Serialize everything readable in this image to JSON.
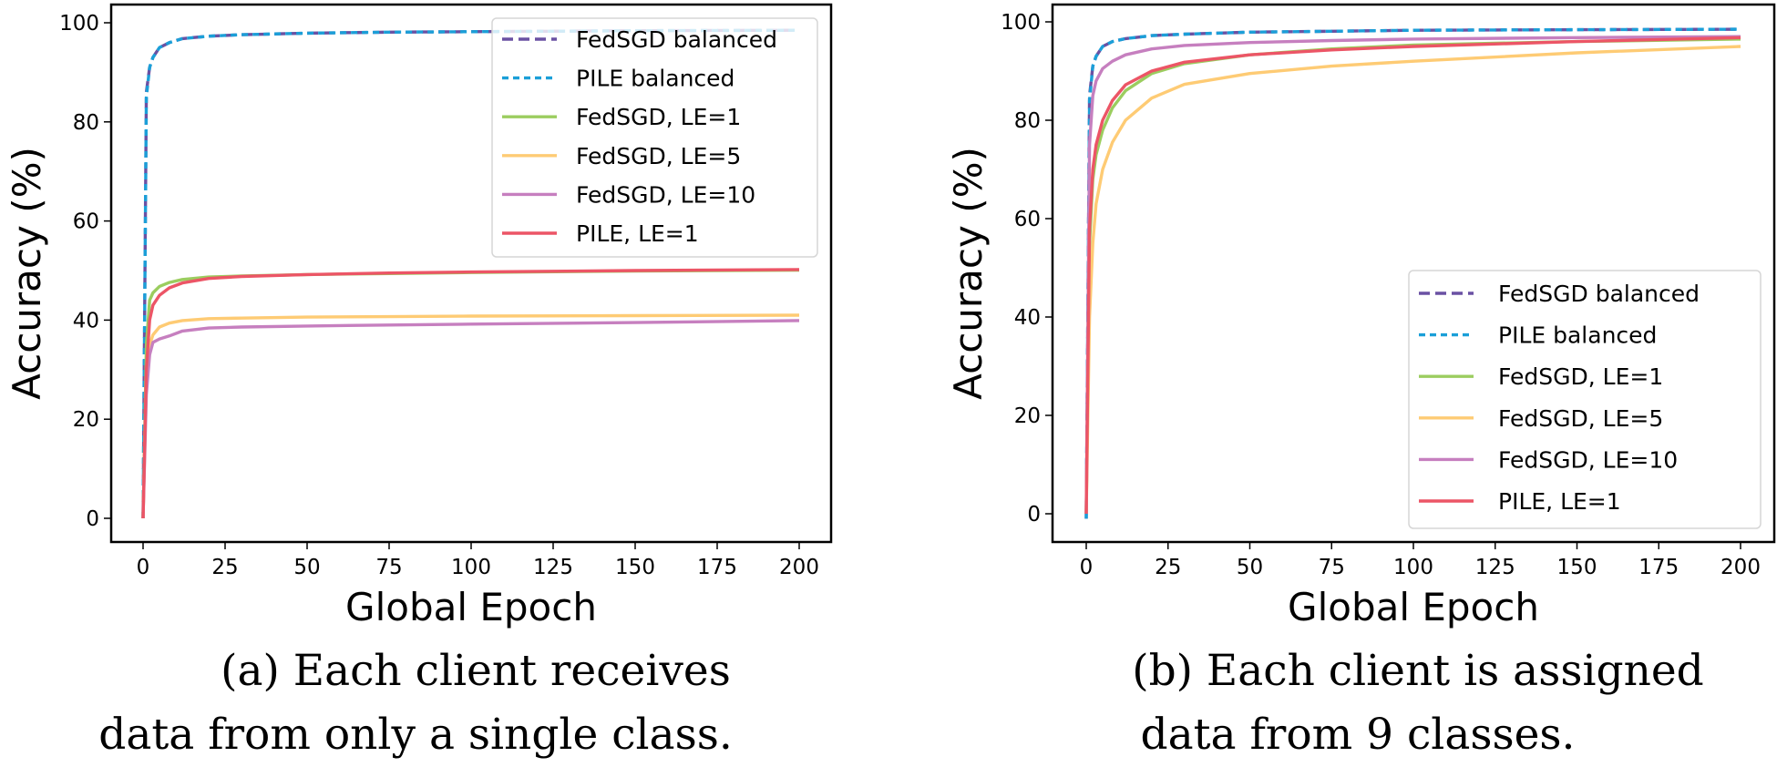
{
  "chart_data": [
    {
      "type": "line",
      "caption": [
        "(a) Each client receives",
        "data from only a single class."
      ],
      "xlabel": "Global Epoch",
      "ylabel": "Accuracy (%)",
      "xlim": [
        -10,
        210
      ],
      "ylim": [
        -8,
        103
      ],
      "xticks": [
        0,
        25,
        50,
        75,
        100,
        125,
        150,
        175,
        200
      ],
      "yticks": [
        0,
        20,
        40,
        60,
        80,
        100
      ],
      "grid": false,
      "legend_position": "top-right",
      "x": [
        0,
        1,
        2,
        3,
        5,
        8,
        12,
        20,
        30,
        50,
        75,
        100,
        150,
        200
      ],
      "series": [
        {
          "name": "FedSGD balanced",
          "color": "#6a51a3",
          "style": "dashed",
          "values": [
            0,
            86,
            91,
            93,
            95,
            96,
            96.8,
            97.3,
            97.6,
            97.9,
            98.1,
            98.2,
            98.4,
            98.5
          ]
        },
        {
          "name": "PILE balanced",
          "color": "#1b9fd8",
          "style": "dotted-dash",
          "values": [
            0,
            85,
            91,
            93,
            95,
            96,
            96.8,
            97.3,
            97.6,
            97.9,
            98.1,
            98.2,
            98.4,
            98.5
          ]
        },
        {
          "name": "FedSGD, LE=1",
          "color": "#9bcd5f",
          "style": "solid",
          "values": [
            0,
            35,
            44,
            45.5,
            46.8,
            47.6,
            48.2,
            48.7,
            48.9,
            49.2,
            49.4,
            49.6,
            49.9,
            50.1
          ]
        },
        {
          "name": "FedSGD, LE=5",
          "color": "#fecb74",
          "style": "solid",
          "values": [
            0,
            28,
            35,
            37,
            38.6,
            39.4,
            39.9,
            40.3,
            40.4,
            40.6,
            40.7,
            40.8,
            40.9,
            41
          ]
        },
        {
          "name": "FedSGD, LE=10",
          "color": "#c67fbf",
          "style": "solid",
          "values": [
            0,
            25,
            33,
            35.5,
            36.2,
            36.8,
            37.8,
            38.4,
            38.6,
            38.8,
            39,
            39.2,
            39.5,
            39.9
          ]
        },
        {
          "name": "PILE, LE=1",
          "color": "#ec5566",
          "style": "solid",
          "values": [
            0,
            30,
            40,
            43,
            45,
            46.5,
            47.5,
            48.4,
            48.8,
            49.2,
            49.5,
            49.7,
            50,
            50.2
          ]
        }
      ]
    },
    {
      "type": "line",
      "caption": [
        "(b) Each client is assigned",
        "data from 9 classes."
      ],
      "xlabel": "Global Epoch",
      "ylabel": "Accuracy (%)",
      "xlim": [
        -10,
        210
      ],
      "ylim": [
        -6,
        103
      ],
      "xticks": [
        0,
        25,
        50,
        75,
        100,
        125,
        150,
        175,
        200
      ],
      "yticks": [
        0,
        20,
        40,
        60,
        80,
        100
      ],
      "grid": false,
      "legend_position": "bottom-right",
      "x": [
        0,
        1,
        2,
        3,
        5,
        8,
        12,
        20,
        30,
        50,
        75,
        100,
        150,
        200
      ],
      "series": [
        {
          "name": "FedSGD balanced",
          "color": "#6a51a3",
          "style": "dashed",
          "values": [
            -1,
            85,
            91,
            93,
            95,
            96,
            96.6,
            97.2,
            97.5,
            97.9,
            98.1,
            98.3,
            98.4,
            98.5
          ]
        },
        {
          "name": "PILE balanced",
          "color": "#1b9fd8",
          "style": "dotted-dash",
          "values": [
            -1,
            84,
            91,
            93,
            95,
            96,
            96.6,
            97.2,
            97.5,
            97.9,
            98.1,
            98.3,
            98.4,
            98.5
          ]
        },
        {
          "name": "FedSGD, LE=1",
          "color": "#9bcd5f",
          "style": "solid",
          "values": [
            0,
            55,
            68,
            73,
            78,
            82.5,
            86,
            89.5,
            91.5,
            93.3,
            94.5,
            95.3,
            96,
            96.5
          ]
        },
        {
          "name": "FedSGD, LE=5",
          "color": "#fecb74",
          "style": "solid",
          "values": [
            0,
            40,
            55,
            63,
            70,
            75.5,
            80,
            84.5,
            87.3,
            89.5,
            91,
            92,
            93.7,
            95
          ]
        },
        {
          "name": "FedSGD, LE=10",
          "color": "#c67fbf",
          "style": "solid",
          "values": [
            0,
            75,
            85,
            88,
            90.5,
            92,
            93.3,
            94.5,
            95.2,
            95.8,
            96.2,
            96.5,
            96.8,
            97
          ]
        },
        {
          "name": "PILE, LE=1",
          "color": "#ec5566",
          "style": "solid",
          "values": [
            0,
            58,
            70,
            75,
            80,
            84,
            87.2,
            90,
            91.8,
            93.3,
            94.3,
            95,
            96,
            96.8
          ]
        }
      ]
    }
  ]
}
